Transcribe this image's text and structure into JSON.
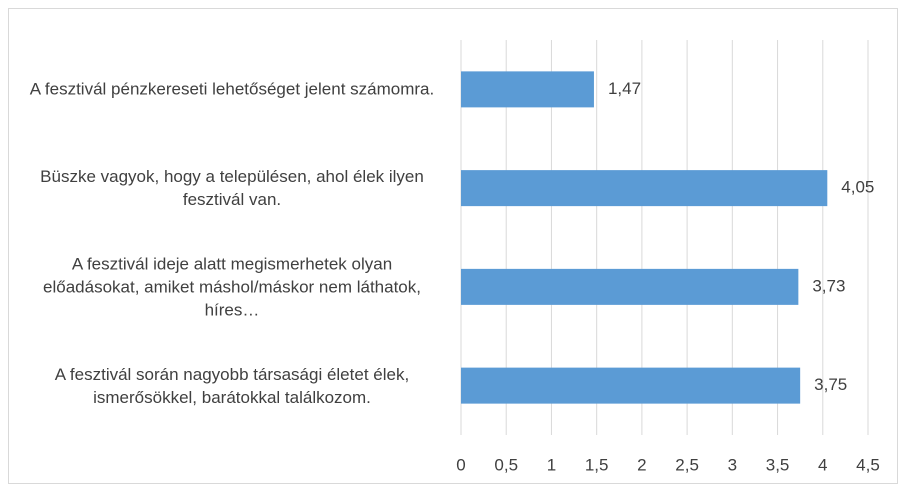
{
  "chart_data": {
    "type": "bar",
    "orientation": "horizontal",
    "categories": [
      "A fesztivál pénzkereseti lehetőséget jelent számomra.",
      "Büszke vagyok, hogy a településen, ahol élek ilyen fesztivál van.",
      "A fesztivál ideje alatt megismerhetek olyan előadásokat, amiket máshol/máskor nem láthatok, híres…",
      "A fesztivál során nagyobb társasági életet élek, ismerősökkel, barátokkal találkozom."
    ],
    "values": [
      1.47,
      4.05,
      3.73,
      3.75
    ],
    "value_labels": [
      "1,47",
      "4,05",
      "3,73",
      "3,75"
    ],
    "color": "#5b9bd5",
    "xlim": [
      0,
      4.5
    ],
    "xticks": [
      0,
      {
        "value": 0.5,
        "label": "0,5"
      },
      1,
      {
        "value": 1.5,
        "label": "1,5"
      },
      2,
      {
        "value": 2.5,
        "label": "2,5"
      },
      3,
      {
        "value": 3.5,
        "label": "3,5"
      },
      4,
      {
        "value": 4.5,
        "label": "4,5"
      }
    ],
    "grid": true
  }
}
